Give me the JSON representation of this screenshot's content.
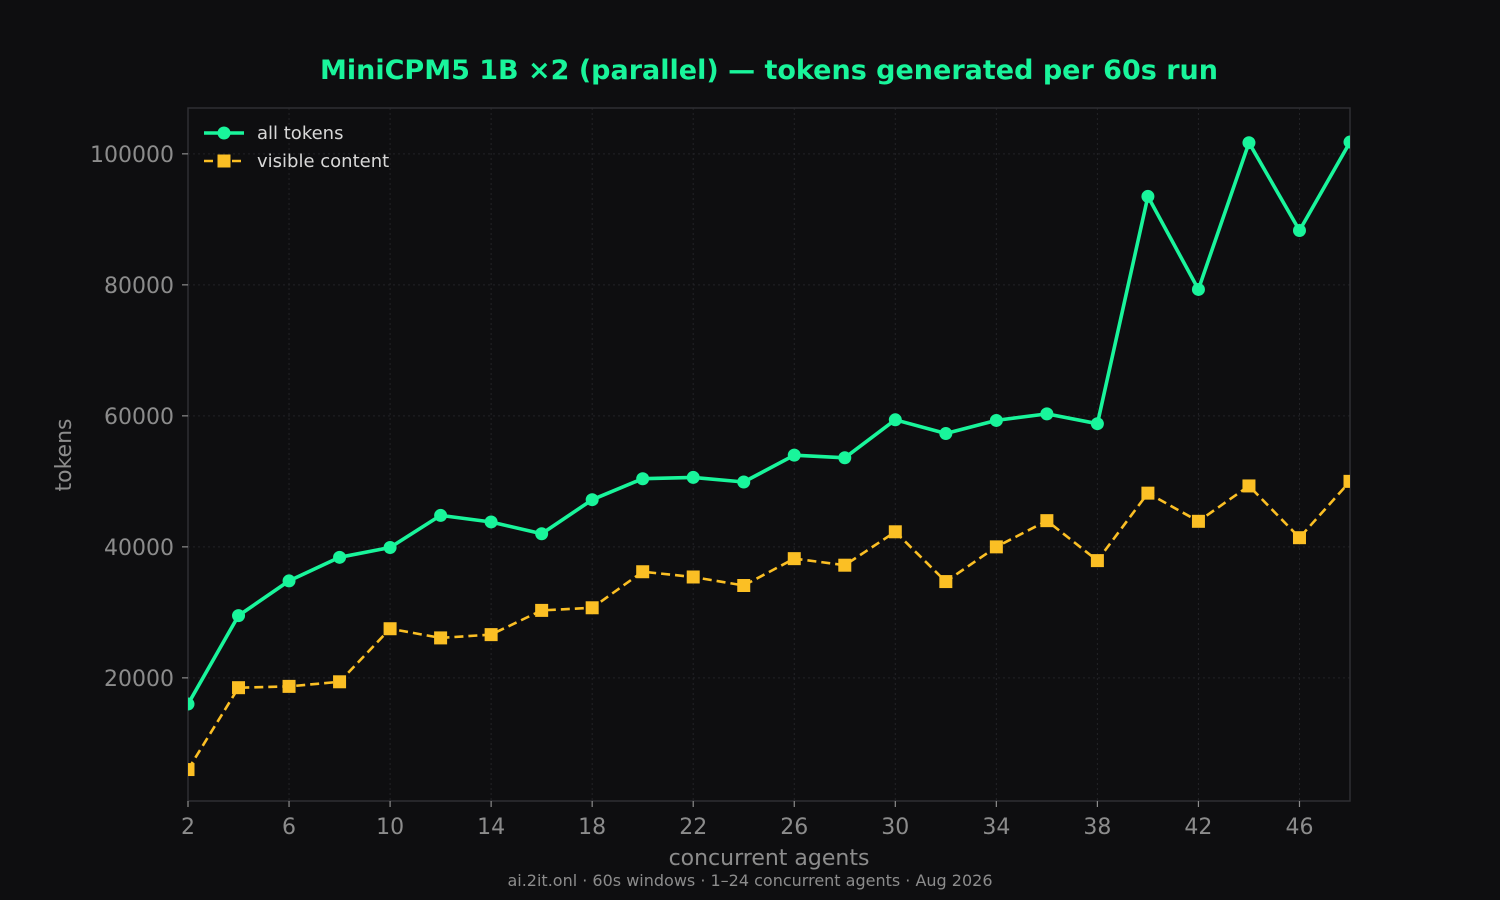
{
  "chart_data": {
    "type": "line",
    "title": "MiniCPM5 1B ×2 (parallel) — tokens generated per 60s run",
    "xlabel": "concurrent agents",
    "ylabel": "tokens",
    "footer": "ai.2it.onl · 60s windows · 1–24 concurrent agents · Aug 2026",
    "xlim": [
      2,
      48
    ],
    "ylim": [
      1200,
      107000
    ],
    "xticks": [
      2,
      6,
      10,
      14,
      18,
      22,
      26,
      30,
      34,
      38,
      42,
      46
    ],
    "yticks": [
      20000,
      40000,
      60000,
      80000,
      100000
    ],
    "grid": true,
    "legend_position": "top-left",
    "x": [
      2,
      4,
      6,
      8,
      10,
      12,
      14,
      16,
      18,
      20,
      22,
      24,
      26,
      28,
      30,
      32,
      34,
      36,
      38,
      40,
      42,
      44,
      46,
      48
    ],
    "series": [
      {
        "name": "all tokens",
        "color": "#19f59b",
        "marker": "circle",
        "line_style": "solid",
        "values": [
          16000,
          29500,
          34800,
          38400,
          39900,
          44800,
          43800,
          42000,
          47200,
          50400,
          50600,
          49900,
          54000,
          53600,
          59400,
          57300,
          59300,
          60300,
          58800,
          93500,
          79300,
          101700,
          88300,
          101800
        ]
      },
      {
        "name": "visible content",
        "color": "#fbbf24",
        "marker": "square",
        "line_style": "dashed",
        "values": [
          6000,
          18500,
          18700,
          19400,
          27500,
          26100,
          26600,
          30300,
          30700,
          36200,
          35400,
          34100,
          38200,
          37200,
          42300,
          34700,
          40000,
          44000,
          37900,
          48200,
          43900,
          49300,
          41400,
          50000
        ]
      }
    ],
    "colors": {
      "background": "#0e0e10",
      "plot_background": "#0e0e10",
      "title": "#19f59b",
      "axis_text": "#8c8c8c",
      "spine": "#2f2f33",
      "grid": "#232327"
    }
  }
}
